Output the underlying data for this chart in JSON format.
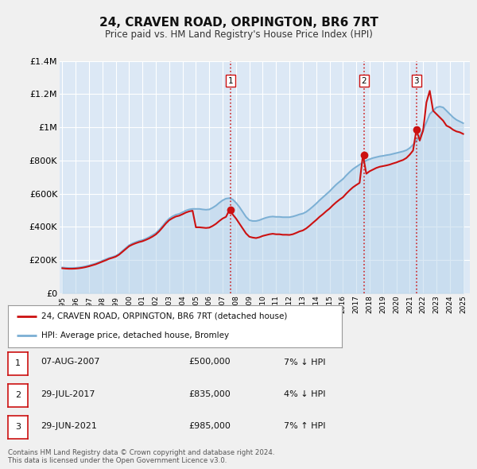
{
  "title": "24, CRAVEN ROAD, ORPINGTON, BR6 7RT",
  "subtitle": "Price paid vs. HM Land Registry's House Price Index (HPI)",
  "fig_bg_color": "#f0f0f0",
  "plot_bg_color": "#dce8f5",
  "grid_color": "#ffffff",
  "hpi_color": "#7bafd4",
  "hpi_fill_color": "#b8d4ea",
  "price_color": "#cc1111",
  "ylim": [
    0,
    1400000
  ],
  "yticks": [
    0,
    200000,
    400000,
    600000,
    800000,
    1000000,
    1200000,
    1400000
  ],
  "ytick_labels": [
    "£0",
    "£200K",
    "£400K",
    "£600K",
    "£800K",
    "£1M",
    "£1.2M",
    "£1.4M"
  ],
  "sale_dates": [
    2007.6,
    2017.58,
    2021.5
  ],
  "sale_prices": [
    500000,
    835000,
    985000
  ],
  "sale_labels": [
    "1",
    "2",
    "3"
  ],
  "vline_color": "#cc1111",
  "marker_color": "#cc1111",
  "legend_label_red": "24, CRAVEN ROAD, ORPINGTON, BR6 7RT (detached house)",
  "legend_label_blue": "HPI: Average price, detached house, Bromley",
  "table_rows": [
    {
      "num": "1",
      "date": "07-AUG-2007",
      "price": "£500,000",
      "hpi": "7% ↓ HPI"
    },
    {
      "num": "2",
      "date": "29-JUL-2017",
      "price": "£835,000",
      "hpi": "4% ↓ HPI"
    },
    {
      "num": "3",
      "date": "29-JUN-2021",
      "price": "£985,000",
      "hpi": "7% ↑ HPI"
    }
  ],
  "footer": "Contains HM Land Registry data © Crown copyright and database right 2024.\nThis data is licensed under the Open Government Licence v3.0.",
  "hpi_years": [
    1995.0,
    1995.25,
    1995.5,
    1995.75,
    1996.0,
    1996.25,
    1996.5,
    1996.75,
    1997.0,
    1997.25,
    1997.5,
    1997.75,
    1998.0,
    1998.25,
    1998.5,
    1998.75,
    1999.0,
    1999.25,
    1999.5,
    1999.75,
    2000.0,
    2000.25,
    2000.5,
    2000.75,
    2001.0,
    2001.25,
    2001.5,
    2001.75,
    2002.0,
    2002.25,
    2002.5,
    2002.75,
    2003.0,
    2003.25,
    2003.5,
    2003.75,
    2004.0,
    2004.25,
    2004.5,
    2004.75,
    2005.0,
    2005.25,
    2005.5,
    2005.75,
    2006.0,
    2006.25,
    2006.5,
    2006.75,
    2007.0,
    2007.25,
    2007.5,
    2007.75,
    2008.0,
    2008.25,
    2008.5,
    2008.75,
    2009.0,
    2009.25,
    2009.5,
    2009.75,
    2010.0,
    2010.25,
    2010.5,
    2010.75,
    2011.0,
    2011.25,
    2011.5,
    2011.75,
    2012.0,
    2012.25,
    2012.5,
    2012.75,
    2013.0,
    2013.25,
    2013.5,
    2013.75,
    2014.0,
    2014.25,
    2014.5,
    2014.75,
    2015.0,
    2015.25,
    2015.5,
    2015.75,
    2016.0,
    2016.25,
    2016.5,
    2016.75,
    2017.0,
    2017.25,
    2017.5,
    2017.75,
    2018.0,
    2018.25,
    2018.5,
    2018.75,
    2019.0,
    2019.25,
    2019.5,
    2019.75,
    2020.0,
    2020.25,
    2020.5,
    2020.75,
    2021.0,
    2021.25,
    2021.5,
    2021.75,
    2022.0,
    2022.25,
    2022.5,
    2022.75,
    2023.0,
    2023.25,
    2023.5,
    2023.75,
    2024.0,
    2024.25,
    2024.5,
    2024.75,
    2025.0
  ],
  "hpi_vals": [
    155000,
    153000,
    152000,
    152000,
    153000,
    155000,
    158000,
    162000,
    167000,
    173000,
    179000,
    187000,
    196000,
    204000,
    212000,
    218000,
    225000,
    237000,
    255000,
    272000,
    289000,
    300000,
    308000,
    315000,
    320000,
    328000,
    338000,
    350000,
    362000,
    382000,
    405000,
    430000,
    450000,
    463000,
    473000,
    478000,
    488000,
    498000,
    505000,
    508000,
    508000,
    508000,
    505000,
    503000,
    505000,
    515000,
    528000,
    545000,
    560000,
    570000,
    573000,
    565000,
    545000,
    520000,
    490000,
    460000,
    440000,
    435000,
    435000,
    440000,
    448000,
    455000,
    460000,
    462000,
    460000,
    460000,
    458000,
    458000,
    458000,
    462000,
    468000,
    475000,
    480000,
    490000,
    505000,
    522000,
    540000,
    560000,
    578000,
    596000,
    614000,
    635000,
    655000,
    672000,
    688000,
    710000,
    730000,
    748000,
    762000,
    775000,
    788000,
    800000,
    808000,
    815000,
    820000,
    825000,
    828000,
    832000,
    835000,
    840000,
    845000,
    850000,
    855000,
    862000,
    875000,
    895000,
    920000,
    948000,
    985000,
    1030000,
    1080000,
    1100000,
    1120000,
    1125000,
    1120000,
    1100000,
    1080000,
    1060000,
    1045000,
    1035000,
    1025000
  ],
  "price_years": [
    1995.0,
    1995.25,
    1995.5,
    1995.75,
    1996.0,
    1996.25,
    1996.5,
    1996.75,
    1997.0,
    1997.25,
    1997.5,
    1997.75,
    1998.0,
    1998.25,
    1998.5,
    1998.75,
    1999.0,
    1999.25,
    1999.5,
    1999.75,
    2000.0,
    2000.25,
    2000.5,
    2000.75,
    2001.0,
    2001.25,
    2001.5,
    2001.75,
    2002.0,
    2002.25,
    2002.5,
    2002.75,
    2003.0,
    2003.25,
    2003.5,
    2003.75,
    2004.0,
    2004.25,
    2004.5,
    2004.75,
    2005.0,
    2005.25,
    2005.5,
    2005.75,
    2006.0,
    2006.25,
    2006.5,
    2006.75,
    2007.0,
    2007.25,
    2007.5,
    2007.75,
    2008.0,
    2008.25,
    2008.5,
    2008.75,
    2009.0,
    2009.25,
    2009.5,
    2009.75,
    2010.0,
    2010.25,
    2010.5,
    2010.75,
    2011.0,
    2011.25,
    2011.5,
    2011.75,
    2012.0,
    2012.25,
    2012.5,
    2012.75,
    2013.0,
    2013.25,
    2013.5,
    2013.75,
    2014.0,
    2014.25,
    2014.5,
    2014.75,
    2015.0,
    2015.25,
    2015.5,
    2015.75,
    2016.0,
    2016.25,
    2016.5,
    2016.75,
    2017.0,
    2017.25,
    2017.5,
    2017.75,
    2018.0,
    2018.25,
    2018.5,
    2018.75,
    2019.0,
    2019.25,
    2019.5,
    2019.75,
    2020.0,
    2020.25,
    2020.5,
    2020.75,
    2021.0,
    2021.25,
    2021.5,
    2021.75,
    2022.0,
    2022.25,
    2022.5,
    2022.75,
    2023.0,
    2023.25,
    2023.5,
    2023.75,
    2024.0,
    2024.25,
    2024.5,
    2024.75,
    2025.0
  ],
  "price_vals": [
    150000,
    148000,
    147000,
    147000,
    148000,
    150000,
    153000,
    157000,
    162000,
    168000,
    174000,
    182000,
    190000,
    198000,
    207000,
    213000,
    220000,
    232000,
    249000,
    266000,
    283000,
    293000,
    301000,
    308000,
    313000,
    321000,
    330000,
    341000,
    354000,
    373000,
    396000,
    420000,
    440000,
    452000,
    462000,
    467000,
    476000,
    486000,
    493000,
    497000,
    397000,
    397000,
    395000,
    393000,
    395000,
    405000,
    418000,
    435000,
    450000,
    460000,
    500000,
    475000,
    450000,
    420000,
    390000,
    360000,
    340000,
    335000,
    332000,
    337000,
    345000,
    350000,
    355000,
    358000,
    355000,
    355000,
    352000,
    352000,
    351000,
    355000,
    363000,
    372000,
    378000,
    390000,
    406000,
    424000,
    441000,
    460000,
    476000,
    494000,
    510000,
    530000,
    548000,
    564000,
    578000,
    600000,
    620000,
    638000,
    652000,
    665000,
    835000,
    720000,
    735000,
    745000,
    755000,
    762000,
    766000,
    770000,
    775000,
    782000,
    788000,
    796000,
    803000,
    815000,
    835000,
    860000,
    985000,
    920000,
    980000,
    1150000,
    1220000,
    1100000,
    1080000,
    1060000,
    1040000,
    1010000,
    1000000,
    985000,
    975000,
    970000,
    960000
  ]
}
